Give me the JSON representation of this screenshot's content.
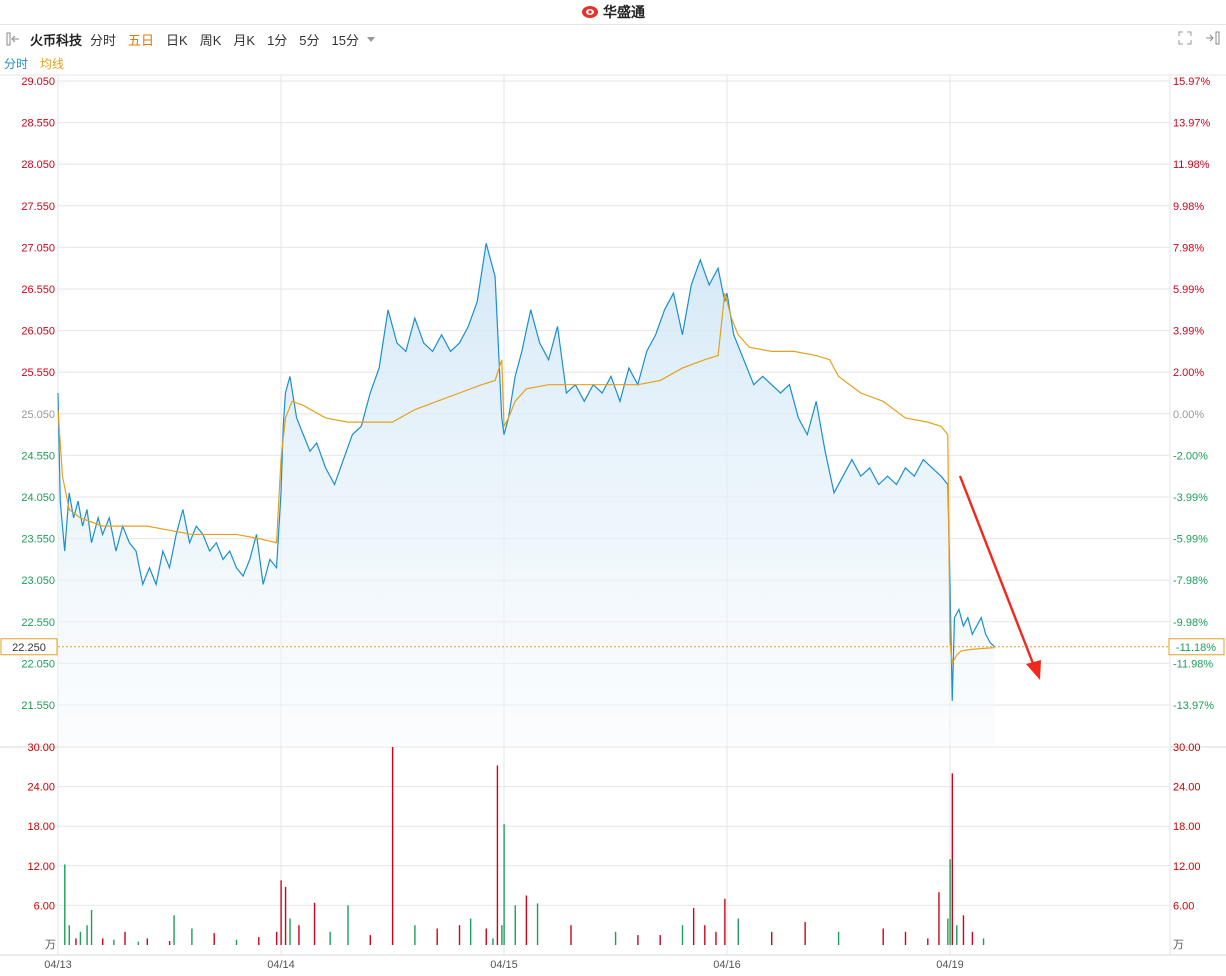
{
  "header": {
    "logo_text": "华盛通"
  },
  "toolbar": {
    "stock_name": "火币科技",
    "tabs": [
      {
        "label": "分时"
      },
      {
        "label": "五日",
        "active": true
      },
      {
        "label": "日K"
      },
      {
        "label": "周K"
      },
      {
        "label": "月K"
      },
      {
        "label": "1分"
      },
      {
        "label": "5分"
      },
      {
        "label": "15分"
      }
    ]
  },
  "legend": {
    "price_line": "分时",
    "avg_line": "均线"
  },
  "colors": {
    "price": "#1a8fd1",
    "avg": "#e5a01d",
    "up": "#d0021b",
    "down": "#1b9e5a",
    "grid": "#e6e6e6",
    "arrow": "#f0281e",
    "current_box": "#e5a01d"
  },
  "chart_data": {
    "type": "line",
    "days": [
      "04/13",
      "04/14",
      "04/15",
      "04/16",
      "04/19"
    ],
    "price_axis": {
      "left_ticks": [
        "29.050",
        "28.550",
        "28.050",
        "27.550",
        "27.050",
        "26.550",
        "26.050",
        "25.550",
        "25.050",
        "24.550",
        "24.050",
        "23.550",
        "23.050",
        "22.550",
        "22.050",
        "21.550"
      ],
      "right_ticks": [
        "15.97%",
        "13.97%",
        "11.98%",
        "9.98%",
        "7.98%",
        "5.99%",
        "3.99%",
        "2.00%",
        "0.00%",
        "-2.00%",
        "-3.99%",
        "-5.99%",
        "-7.98%",
        "-9.98%",
        "-11.98%",
        "-13.97%"
      ],
      "ylim": [
        21.55,
        29.05
      ],
      "current_price": "22.250",
      "current_pct": "-11.18%"
    },
    "volume_axis": {
      "ticks": [
        "30.00",
        "24.00",
        "18.00",
        "12.00",
        "6.00"
      ],
      "unit": "万",
      "ylim": [
        0,
        30
      ]
    },
    "series": [
      {
        "name": "分时",
        "x": [
          0,
          0.01,
          0.03,
          0.05,
          0.07,
          0.09,
          0.11,
          0.13,
          0.15,
          0.18,
          0.2,
          0.23,
          0.26,
          0.29,
          0.32,
          0.35,
          0.38,
          0.41,
          0.44,
          0.47,
          0.5,
          0.53,
          0.56,
          0.59,
          0.62,
          0.65,
          0.68,
          0.71,
          0.74,
          0.77,
          0.8,
          0.83,
          0.86,
          0.89,
          0.92,
          0.95,
          0.98,
          1.0,
          1.01,
          1.02,
          1.04,
          1.07,
          1.1,
          1.13,
          1.16,
          1.2,
          1.24,
          1.28,
          1.32,
          1.36,
          1.4,
          1.44,
          1.48,
          1.52,
          1.56,
          1.6,
          1.64,
          1.68,
          1.72,
          1.76,
          1.8,
          1.84,
          1.88,
          1.92,
          1.96,
          1.99,
          2.0,
          2.02,
          2.05,
          2.08,
          2.12,
          2.16,
          2.2,
          2.24,
          2.28,
          2.32,
          2.36,
          2.4,
          2.44,
          2.48,
          2.52,
          2.56,
          2.6,
          2.64,
          2.68,
          2.72,
          2.76,
          2.8,
          2.84,
          2.88,
          2.92,
          2.96,
          2.99,
          3.0,
          3.03,
          3.06,
          3.09,
          3.12,
          3.16,
          3.2,
          3.24,
          3.28,
          3.32,
          3.36,
          3.4,
          3.44,
          3.48,
          3.52,
          3.56,
          3.6,
          3.64,
          3.68,
          3.72,
          3.76,
          3.8,
          3.84,
          3.88,
          3.92,
          3.96,
          3.99,
          4.0,
          4.01,
          4.02,
          4.04,
          4.06,
          4.08,
          4.1,
          4.12,
          4.14,
          4.16,
          4.18,
          4.2
        ],
        "values": [
          25.3,
          24.0,
          23.4,
          24.1,
          23.8,
          24.0,
          23.7,
          23.9,
          23.5,
          23.8,
          23.6,
          23.8,
          23.4,
          23.7,
          23.5,
          23.4,
          23.0,
          23.2,
          23.0,
          23.4,
          23.2,
          23.6,
          23.9,
          23.5,
          23.7,
          23.6,
          23.4,
          23.5,
          23.3,
          23.4,
          23.2,
          23.1,
          23.3,
          23.6,
          23.0,
          23.3,
          23.2,
          24.1,
          24.9,
          25.3,
          25.5,
          25.0,
          24.8,
          24.6,
          24.7,
          24.4,
          24.2,
          24.5,
          24.8,
          24.9,
          25.3,
          25.6,
          26.3,
          25.9,
          25.8,
          26.2,
          25.9,
          25.8,
          26.0,
          25.8,
          25.9,
          26.1,
          26.4,
          27.1,
          26.7,
          25.0,
          24.8,
          25.0,
          25.5,
          25.8,
          26.3,
          25.9,
          25.7,
          26.1,
          25.3,
          25.4,
          25.2,
          25.4,
          25.3,
          25.5,
          25.2,
          25.6,
          25.4,
          25.8,
          26.0,
          26.3,
          26.5,
          26.0,
          26.6,
          26.9,
          26.6,
          26.8,
          26.4,
          26.5,
          26.0,
          25.8,
          25.6,
          25.4,
          25.5,
          25.4,
          25.3,
          25.4,
          25.0,
          24.8,
          25.2,
          24.6,
          24.1,
          24.3,
          24.5,
          24.3,
          24.4,
          24.2,
          24.3,
          24.2,
          24.4,
          24.3,
          24.5,
          24.4,
          24.3,
          24.2,
          23.0,
          21.6,
          22.6,
          22.7,
          22.5,
          22.6,
          22.4,
          22.5,
          22.6,
          22.4,
          22.3,
          22.25
        ]
      },
      {
        "name": "均线",
        "x": [
          0,
          0.02,
          0.05,
          0.1,
          0.2,
          0.3,
          0.4,
          0.5,
          0.6,
          0.7,
          0.8,
          0.9,
          0.98,
          1.0,
          1.02,
          1.05,
          1.1,
          1.2,
          1.3,
          1.4,
          1.5,
          1.6,
          1.7,
          1.8,
          1.9,
          1.96,
          1.99,
          2.0,
          2.02,
          2.05,
          2.1,
          2.2,
          2.3,
          2.4,
          2.5,
          2.6,
          2.7,
          2.8,
          2.9,
          2.96,
          2.99,
          3.0,
          3.02,
          3.05,
          3.1,
          3.2,
          3.3,
          3.4,
          3.46,
          3.5,
          3.6,
          3.7,
          3.8,
          3.9,
          3.96,
          3.99,
          4.0,
          4.01,
          4.03,
          4.05,
          4.1,
          4.15,
          4.2
        ],
        "values": [
          25.1,
          24.3,
          23.9,
          23.8,
          23.7,
          23.7,
          23.7,
          23.65,
          23.6,
          23.6,
          23.6,
          23.55,
          23.5,
          24.5,
          25.0,
          25.2,
          25.15,
          25.0,
          24.95,
          24.95,
          24.95,
          25.1,
          25.2,
          25.3,
          25.4,
          25.45,
          25.7,
          24.9,
          25.0,
          25.2,
          25.35,
          25.4,
          25.4,
          25.4,
          25.4,
          25.4,
          25.45,
          25.6,
          25.7,
          25.75,
          26.5,
          26.4,
          26.2,
          26.0,
          25.85,
          25.8,
          25.8,
          25.75,
          25.7,
          25.5,
          25.3,
          25.2,
          25.0,
          24.95,
          24.9,
          24.8,
          22.3,
          22.05,
          22.15,
          22.2,
          22.22,
          22.23,
          22.24
        ]
      }
    ],
    "volume": {
      "x": [
        0.03,
        0.05,
        0.08,
        0.1,
        0.13,
        0.15,
        0.2,
        0.25,
        0.3,
        0.36,
        0.4,
        0.5,
        0.52,
        0.6,
        0.7,
        0.8,
        0.9,
        0.98,
        1.0,
        1.02,
        1.04,
        1.08,
        1.15,
        1.22,
        1.3,
        1.4,
        1.5,
        1.6,
        1.7,
        1.8,
        1.85,
        1.92,
        1.95,
        1.97,
        1.99,
        2.0,
        2.05,
        2.1,
        2.15,
        2.3,
        2.5,
        2.6,
        2.7,
        2.8,
        2.85,
        2.9,
        2.95,
        2.99,
        3.05,
        3.2,
        3.35,
        3.5,
        3.7,
        3.8,
        3.9,
        3.95,
        3.99,
        4.0,
        4.01,
        4.03,
        4.06,
        4.1,
        4.15
      ],
      "values": [
        12.2,
        3.0,
        1.0,
        2.0,
        3.0,
        5.3,
        1.0,
        0.8,
        2.0,
        0.5,
        1.0,
        0.6,
        4.5,
        2.5,
        1.8,
        0.8,
        1.2,
        2.0,
        9.8,
        8.8,
        4.0,
        3.0,
        6.4,
        2.0,
        6.0,
        1.5,
        30.0,
        3.0,
        2.5,
        3.0,
        4.0,
        2.5,
        1.0,
        27.2,
        3.0,
        18.3,
        6.0,
        7.5,
        6.3,
        3.0,
        2.0,
        1.5,
        1.5,
        3.0,
        5.6,
        3.0,
        2.0,
        7.0,
        4.0,
        2.0,
        3.5,
        2.0,
        2.5,
        2.0,
        1.0,
        8.0,
        4.0,
        13.0,
        26.0,
        3.0,
        4.5,
        2.0,
        1.0
      ],
      "colors": [
        "down",
        "down",
        "up",
        "down",
        "down",
        "down",
        "up",
        "down",
        "up",
        "down",
        "up",
        "up",
        "down",
        "down",
        "up",
        "down",
        "up",
        "up",
        "up",
        "up",
        "down",
        "up",
        "up",
        "down",
        "down",
        "up",
        "up",
        "down",
        "up",
        "up",
        "down",
        "up",
        "down",
        "up",
        "down",
        "down",
        "down",
        "up",
        "down",
        "up",
        "down",
        "up",
        "up",
        "down",
        "up",
        "up",
        "up",
        "up",
        "down",
        "up",
        "up",
        "down",
        "up",
        "up",
        "up",
        "up",
        "down",
        "down",
        "up",
        "down",
        "up",
        "up",
        "down"
      ]
    }
  }
}
